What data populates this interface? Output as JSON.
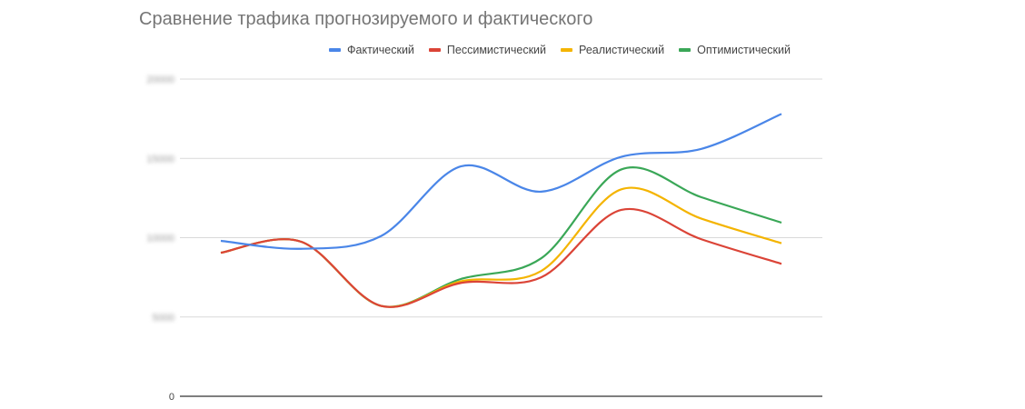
{
  "chart_data": {
    "type": "line",
    "title": "Сравнение трафика прогнозируемого и фактического",
    "xlabel": "",
    "ylabel": "",
    "ylim": [
      0,
      20000
    ],
    "yticks": [
      0,
      5000,
      10000,
      15000,
      20000
    ],
    "ytick_labels": [
      "0",
      "5000",
      "10000",
      "15000",
      "20000"
    ],
    "ytick_labels_blurred_except_zero": true,
    "grid": true,
    "smooth": true,
    "legend_position": "top-right",
    "x": [
      1,
      2,
      3,
      4,
      5,
      6,
      7,
      8
    ],
    "series": [
      {
        "name": "Фактический",
        "color": "#4a86e8",
        "values": [
          9800,
          9300,
          10100,
          14500,
          12900,
          15100,
          15600,
          17800
        ]
      },
      {
        "name": "Пессимистический",
        "color": "#db4437",
        "values": [
          9050,
          9750,
          5700,
          7150,
          7500,
          11750,
          9900,
          8350
        ]
      },
      {
        "name": "Реалистический",
        "color": "#f4b400",
        "values": [
          9050,
          9750,
          5700,
          7250,
          7900,
          13050,
          11200,
          9650
        ]
      },
      {
        "name": "Оптимистический",
        "color": "#3aa757",
        "values": [
          9050,
          9750,
          5700,
          7400,
          8700,
          14300,
          12550,
          10950
        ]
      }
    ]
  }
}
